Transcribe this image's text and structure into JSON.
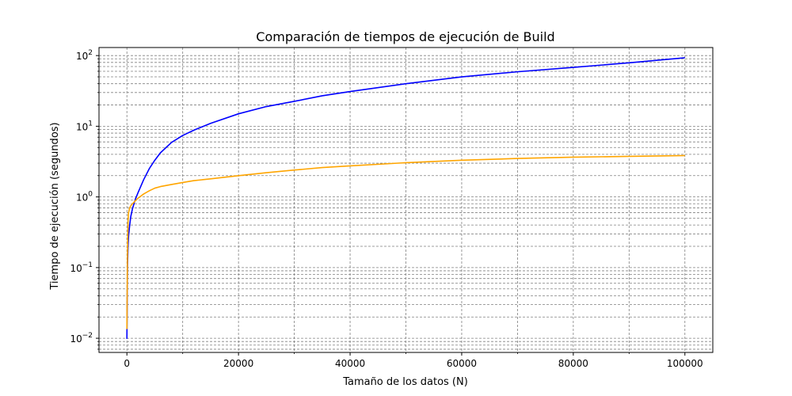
{
  "chart_data": {
    "type": "line",
    "title": "Comparación de tiempos de ejecución de Build",
    "xlabel": "Tamaño de los datos (N)",
    "ylabel": "Tiempo de ejecución (segundos)",
    "xlim": [
      -5000,
      105000
    ],
    "ylim": [
      0.0063,
      130
    ],
    "yscale": "log",
    "grid": true,
    "x_ticks": [
      0,
      20000,
      40000,
      60000,
      80000,
      100000
    ],
    "x_tick_labels": [
      "0",
      "20000",
      "40000",
      "60000",
      "80000",
      "100000"
    ],
    "y_ticks": [
      0.01,
      0.1,
      1,
      10,
      100
    ],
    "y_tick_labels": [
      {
        "base": "10",
        "exp": "−2"
      },
      {
        "base": "10",
        "exp": "−1"
      },
      {
        "base": "10",
        "exp": "0"
      },
      {
        "base": "10",
        "exp": "1"
      },
      {
        "base": "10",
        "exp": "2"
      }
    ],
    "series": [
      {
        "color": "#0000ff",
        "x": [
          0,
          100,
          200,
          300,
          500,
          700,
          1000,
          1500,
          2000,
          3000,
          4000,
          5000,
          6000,
          8000,
          10000,
          12000,
          15000,
          20000,
          25000,
          30000,
          35000,
          40000,
          50000,
          60000,
          70000,
          80000,
          90000,
          100000
        ],
        "y": [
          0.0098,
          0.1,
          0.2,
          0.28,
          0.4,
          0.53,
          0.68,
          0.92,
          1.15,
          1.75,
          2.5,
          3.3,
          4.2,
          5.9,
          7.4,
          8.8,
          11,
          15,
          19,
          22.5,
          27,
          31,
          40,
          50,
          59,
          68,
          79,
          93
        ]
      },
      {
        "color": "#ffa500",
        "x": [
          0,
          100,
          200,
          300,
          500,
          700,
          1000,
          1500,
          2000,
          3000,
          4000,
          5000,
          6000,
          8000,
          10000,
          12000,
          15000,
          20000,
          25000,
          30000,
          35000,
          40000,
          50000,
          60000,
          70000,
          80000,
          90000,
          100000
        ],
        "y": [
          0.0135,
          0.15,
          0.45,
          0.6,
          0.7,
          0.75,
          0.8,
          0.88,
          0.96,
          1.1,
          1.22,
          1.33,
          1.4,
          1.5,
          1.6,
          1.7,
          1.8,
          2.0,
          2.2,
          2.4,
          2.6,
          2.75,
          3.05,
          3.3,
          3.5,
          3.65,
          3.75,
          3.85
        ]
      }
    ]
  }
}
